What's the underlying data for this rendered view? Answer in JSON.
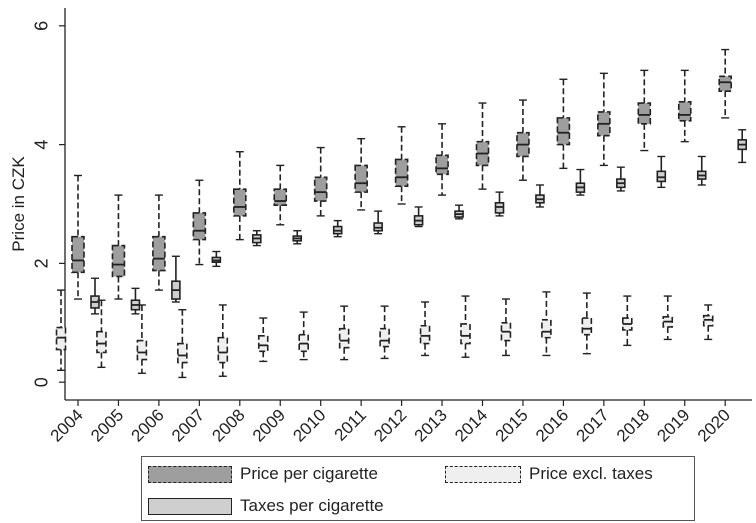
{
  "chart_data": {
    "type": "boxplot",
    "title": "",
    "ylabel": "Price in CZK",
    "xlabel": "",
    "ylim": [
      -0.3,
      6.3
    ],
    "yticks": [
      0,
      2,
      4,
      6
    ],
    "categories": [
      "2004",
      "2005",
      "2006",
      "2007",
      "2008",
      "2009",
      "2010",
      "2011",
      "2012",
      "2013",
      "2014",
      "2015",
      "2016",
      "2017",
      "2018",
      "2019",
      "2020"
    ],
    "legend_position": "bottom",
    "grid": false,
    "series": [
      {
        "name": "Price per cigarette",
        "style": "dashed",
        "color": "#9e9e9e",
        "boxes": [
          {
            "min": 1.4,
            "q1": 1.85,
            "median": 2.05,
            "q3": 2.45,
            "max": 3.48
          },
          {
            "min": 1.4,
            "q1": 1.78,
            "median": 1.98,
            "q3": 2.3,
            "max": 3.15
          },
          {
            "min": 1.55,
            "q1": 1.88,
            "median": 2.08,
            "q3": 2.45,
            "max": 3.15
          },
          {
            "min": 1.98,
            "q1": 2.4,
            "median": 2.55,
            "q3": 2.85,
            "max": 3.4
          },
          {
            "min": 2.4,
            "q1": 2.8,
            "median": 2.95,
            "q3": 3.25,
            "max": 3.88
          },
          {
            "min": 2.65,
            "q1": 2.98,
            "median": 3.05,
            "q3": 3.25,
            "max": 3.65
          },
          {
            "min": 2.8,
            "q1": 3.05,
            "median": 3.2,
            "q3": 3.45,
            "max": 3.95
          },
          {
            "min": 2.9,
            "q1": 3.2,
            "median": 3.35,
            "q3": 3.65,
            "max": 4.1
          },
          {
            "min": 3.0,
            "q1": 3.3,
            "median": 3.45,
            "q3": 3.75,
            "max": 4.3
          },
          {
            "min": 3.15,
            "q1": 3.5,
            "median": 3.6,
            "q3": 3.82,
            "max": 4.35
          },
          {
            "min": 3.25,
            "q1": 3.65,
            "median": 3.85,
            "q3": 4.05,
            "max": 4.7
          },
          {
            "min": 3.4,
            "q1": 3.8,
            "median": 4.0,
            "q3": 4.2,
            "max": 4.75
          },
          {
            "min": 3.6,
            "q1": 4.0,
            "median": 4.2,
            "q3": 4.45,
            "max": 5.1
          },
          {
            "min": 3.65,
            "q1": 4.15,
            "median": 4.35,
            "q3": 4.55,
            "max": 5.2
          },
          {
            "min": 3.9,
            "q1": 4.35,
            "median": 4.5,
            "q3": 4.7,
            "max": 5.25
          },
          {
            "min": 4.05,
            "q1": 4.4,
            "median": 4.5,
            "q3": 4.72,
            "max": 5.25
          },
          {
            "min": 4.45,
            "q1": 4.9,
            "median": 5.05,
            "q3": 5.15,
            "max": 5.6
          }
        ]
      },
      {
        "name": "Taxes per cigarette",
        "style": "solid",
        "color": "#cfcfcf",
        "boxes": [
          {
            "min": 1.15,
            "q1": 1.25,
            "median": 1.35,
            "q3": 1.45,
            "max": 1.75
          },
          {
            "min": 1.15,
            "q1": 1.22,
            "median": 1.3,
            "q3": 1.38,
            "max": 1.58
          },
          {
            "min": 1.35,
            "q1": 1.4,
            "median": 1.55,
            "q3": 1.7,
            "max": 2.12
          },
          {
            "min": 1.95,
            "q1": 2.02,
            "median": 2.05,
            "q3": 2.1,
            "max": 2.2
          },
          {
            "min": 2.3,
            "q1": 2.35,
            "median": 2.42,
            "q3": 2.48,
            "max": 2.55
          },
          {
            "min": 2.33,
            "q1": 2.38,
            "median": 2.42,
            "q3": 2.46,
            "max": 2.55
          },
          {
            "min": 2.45,
            "q1": 2.5,
            "median": 2.55,
            "q3": 2.62,
            "max": 2.72
          },
          {
            "min": 2.5,
            "q1": 2.55,
            "median": 2.6,
            "q3": 2.68,
            "max": 2.88
          },
          {
            "min": 2.62,
            "q1": 2.65,
            "median": 2.72,
            "q3": 2.8,
            "max": 2.95
          },
          {
            "min": 2.75,
            "q1": 2.78,
            "median": 2.83,
            "q3": 2.88,
            "max": 2.98
          },
          {
            "min": 2.8,
            "q1": 2.85,
            "median": 2.95,
            "q3": 3.02,
            "max": 3.2
          },
          {
            "min": 2.95,
            "q1": 3.02,
            "median": 3.08,
            "q3": 3.15,
            "max": 3.32
          },
          {
            "min": 3.15,
            "q1": 3.2,
            "median": 3.28,
            "q3": 3.35,
            "max": 3.58
          },
          {
            "min": 3.22,
            "q1": 3.28,
            "median": 3.35,
            "q3": 3.42,
            "max": 3.62
          },
          {
            "min": 3.28,
            "q1": 3.38,
            "median": 3.45,
            "q3": 3.55,
            "max": 3.8
          },
          {
            "min": 3.32,
            "q1": 3.42,
            "median": 3.48,
            "q3": 3.55,
            "max": 3.8
          },
          {
            "min": 3.7,
            "q1": 3.92,
            "median": 4.0,
            "q3": 4.08,
            "max": 4.25
          }
        ]
      },
      {
        "name": "Price excl. taxes",
        "style": "dashed",
        "color": "#efefef",
        "boxes": [
          {
            "min": 0.2,
            "q1": 0.55,
            "median": 0.75,
            "q3": 0.92,
            "max": 1.55
          },
          {
            "min": 0.25,
            "q1": 0.5,
            "median": 0.65,
            "q3": 0.85,
            "max": 1.38
          },
          {
            "min": 0.15,
            "q1": 0.38,
            "median": 0.5,
            "q3": 0.7,
            "max": 1.3
          },
          {
            "min": 0.08,
            "q1": 0.33,
            "median": 0.45,
            "q3": 0.65,
            "max": 1.22
          },
          {
            "min": 0.1,
            "q1": 0.33,
            "median": 0.5,
            "q3": 0.75,
            "max": 1.3
          },
          {
            "min": 0.35,
            "q1": 0.52,
            "median": 0.62,
            "q3": 0.78,
            "max": 1.08
          },
          {
            "min": 0.38,
            "q1": 0.52,
            "median": 0.65,
            "q3": 0.8,
            "max": 1.18
          },
          {
            "min": 0.38,
            "q1": 0.58,
            "median": 0.7,
            "q3": 0.9,
            "max": 1.28
          },
          {
            "min": 0.4,
            "q1": 0.6,
            "median": 0.7,
            "q3": 0.9,
            "max": 1.28
          },
          {
            "min": 0.45,
            "q1": 0.65,
            "median": 0.78,
            "q3": 0.95,
            "max": 1.35
          },
          {
            "min": 0.42,
            "q1": 0.65,
            "median": 0.78,
            "q3": 0.98,
            "max": 1.45
          },
          {
            "min": 0.45,
            "q1": 0.7,
            "median": 0.85,
            "q3": 1.0,
            "max": 1.4
          },
          {
            "min": 0.45,
            "q1": 0.75,
            "median": 0.85,
            "q3": 1.05,
            "max": 1.52
          },
          {
            "min": 0.48,
            "q1": 0.8,
            "median": 0.9,
            "q3": 1.08,
            "max": 1.5
          },
          {
            "min": 0.62,
            "q1": 0.88,
            "median": 0.98,
            "q3": 1.08,
            "max": 1.45
          },
          {
            "min": 0.72,
            "q1": 0.93,
            "median": 1.02,
            "q3": 1.1,
            "max": 1.45
          },
          {
            "min": 0.72,
            "q1": 0.95,
            "median": 1.05,
            "q3": 1.12,
            "max": 1.3
          }
        ]
      }
    ]
  },
  "legend": {
    "price": "Price per cigarette",
    "excl": "Price excl. taxes",
    "tax": "Taxes per cigarette"
  }
}
